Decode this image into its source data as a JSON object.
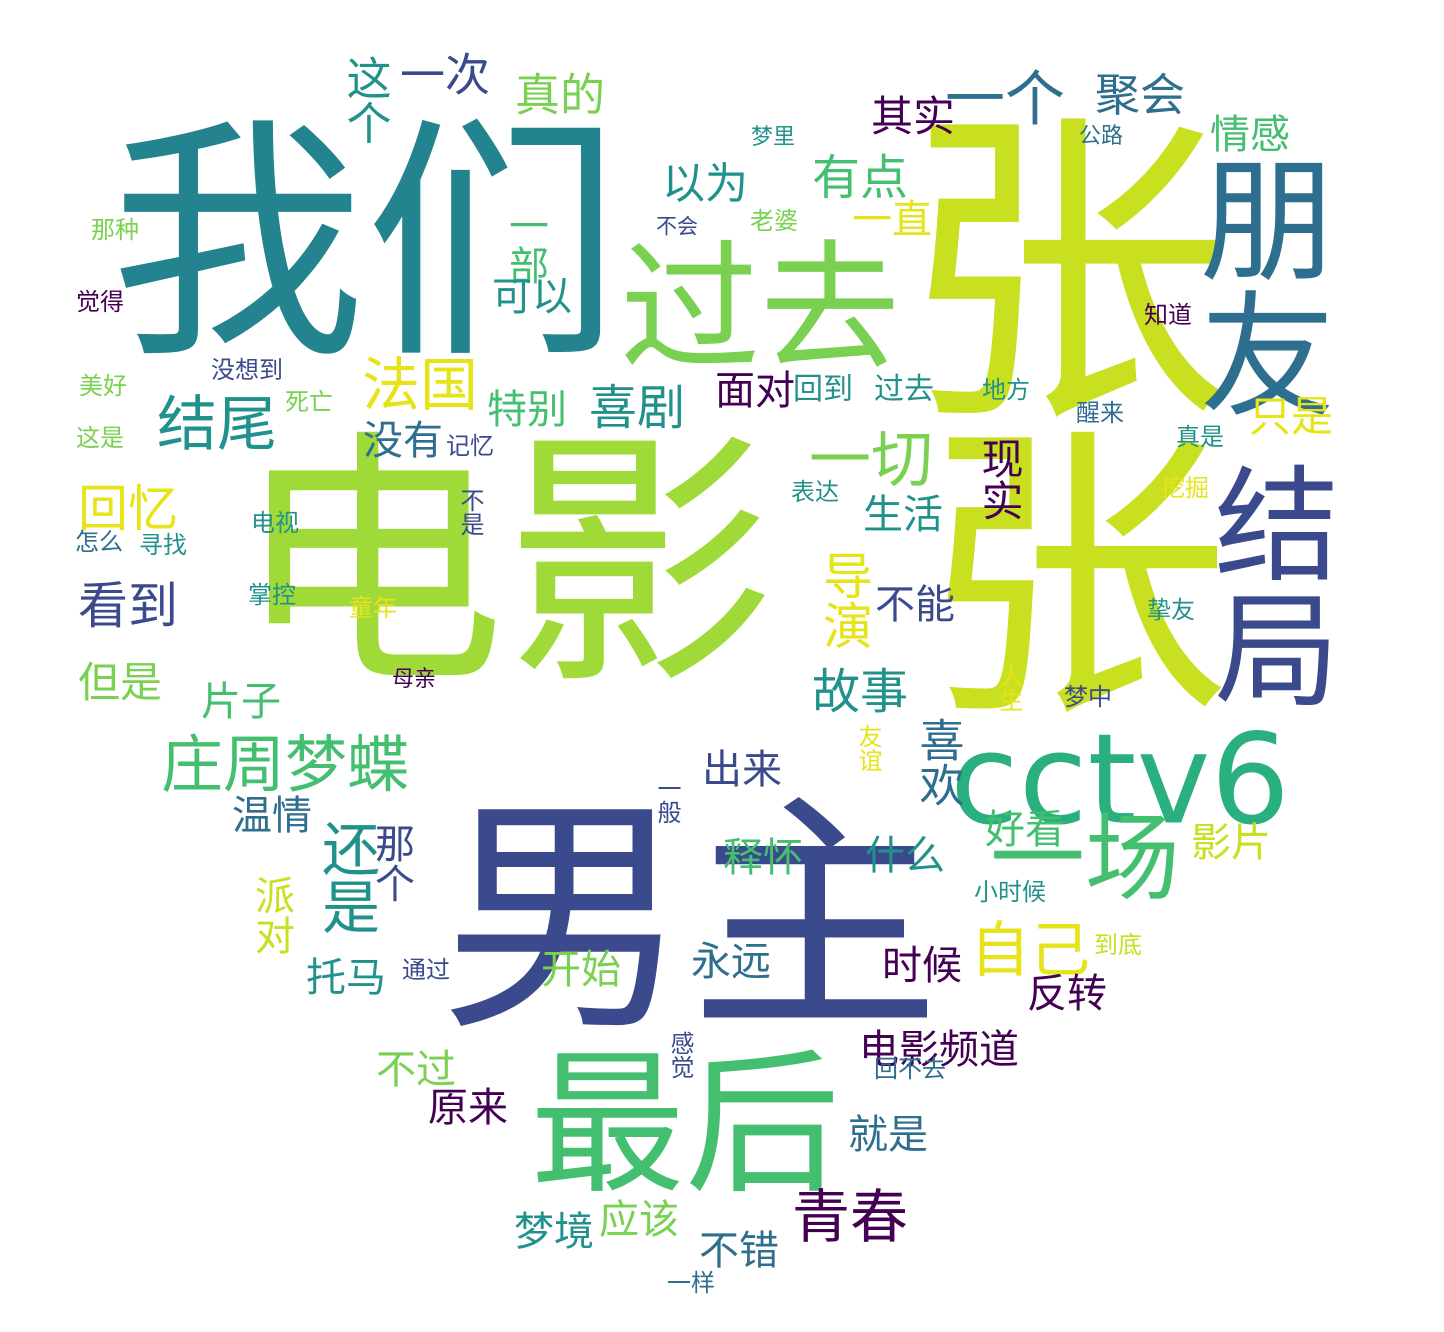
{
  "palette": {
    "dark_purple": "#440154",
    "indigo": "#3b4a8c",
    "blue": "#2e6e8e",
    "teal_blue": "#23838e",
    "teal": "#21918c",
    "sea_green": "#2ab07f",
    "green": "#44bf70",
    "light_green": "#7ad151",
    "lime": "#a0da39",
    "yellow_green": "#c8e020",
    "yellow": "#e6e419",
    "background": "#ffffff"
  },
  "words": [
    {
      "text": "我们",
      "color": "teal_blue"
    },
    {
      "text": "张",
      "color": "yellow_green"
    },
    {
      "text": "张",
      "color": "yellow_green"
    },
    {
      "text": "电影",
      "color": "lime"
    },
    {
      "text": "男主",
      "color": "indigo"
    },
    {
      "text": "过去",
      "color": "light_green"
    },
    {
      "text": "朋友",
      "color": "blue"
    },
    {
      "text": "结局",
      "color": "indigo"
    },
    {
      "text": "cctv6",
      "color": "sea_green"
    },
    {
      "text": "最后",
      "color": "green"
    },
    {
      "text": "一场",
      "color": "green"
    },
    {
      "text": "一个",
      "color": "blue"
    },
    {
      "text": "聚会",
      "color": "blue"
    },
    {
      "text": "这个",
      "color": "teal"
    },
    {
      "text": "一次",
      "color": "indigo"
    },
    {
      "text": "真的",
      "color": "light_green"
    },
    {
      "text": "其实",
      "color": "dark_purple"
    },
    {
      "text": "情感",
      "color": "green"
    },
    {
      "text": "梦里",
      "color": "teal"
    },
    {
      "text": "公路",
      "color": "blue"
    },
    {
      "text": "以为",
      "color": "teal"
    },
    {
      "text": "有点",
      "color": "green"
    },
    {
      "text": "一部",
      "color": "green"
    },
    {
      "text": "一直",
      "color": "yellow"
    },
    {
      "text": "那种",
      "color": "light_green"
    },
    {
      "text": "不会",
      "color": "indigo"
    },
    {
      "text": "老婆",
      "color": "light_green"
    },
    {
      "text": "觉得",
      "color": "dark_purple"
    },
    {
      "text": "可以",
      "color": "teal"
    },
    {
      "text": "知道",
      "color": "dark_purple"
    },
    {
      "text": "没想到",
      "color": "indigo"
    },
    {
      "text": "美好",
      "color": "light_green"
    },
    {
      "text": "法国",
      "color": "yellow"
    },
    {
      "text": "特别",
      "color": "green"
    },
    {
      "text": "喜剧",
      "color": "teal"
    },
    {
      "text": "面对",
      "color": "dark_purple"
    },
    {
      "text": "回到",
      "color": "teal"
    },
    {
      "text": "过去",
      "color": "teal"
    },
    {
      "text": "地方",
      "color": "teal"
    },
    {
      "text": "醒来",
      "color": "blue"
    },
    {
      "text": "结尾",
      "color": "teal"
    },
    {
      "text": "死亡",
      "color": "light_green"
    },
    {
      "text": "只是",
      "color": "yellow"
    },
    {
      "text": "这是",
      "color": "light_green"
    },
    {
      "text": "没有",
      "color": "blue"
    },
    {
      "text": "记忆",
      "color": "indigo"
    },
    {
      "text": "真是",
      "color": "teal"
    },
    {
      "text": "一切",
      "color": "light_green"
    },
    {
      "text": "现实",
      "color": "dark_purple"
    },
    {
      "text": "回忆",
      "color": "yellow"
    },
    {
      "text": "表达",
      "color": "teal"
    },
    {
      "text": "挖掘",
      "color": "yellow"
    },
    {
      "text": "生活",
      "color": "teal"
    },
    {
      "text": "电视",
      "color": "teal"
    },
    {
      "text": "不是",
      "color": "indigo"
    },
    {
      "text": "怎么",
      "color": "blue"
    },
    {
      "text": "寻找",
      "color": "teal"
    },
    {
      "text": "看到",
      "color": "indigo"
    },
    {
      "text": "导演",
      "color": "yellow"
    },
    {
      "text": "掌控",
      "color": "teal"
    },
    {
      "text": "童年",
      "color": "yellow"
    },
    {
      "text": "不能",
      "color": "indigo"
    },
    {
      "text": "挚友",
      "color": "teal"
    },
    {
      "text": "但是",
      "color": "light_green"
    },
    {
      "text": "母亲",
      "color": "dark_purple"
    },
    {
      "text": "人生",
      "color": "yellow"
    },
    {
      "text": "片子",
      "color": "green"
    },
    {
      "text": "故事",
      "color": "teal"
    },
    {
      "text": "梦中",
      "color": "indigo"
    },
    {
      "text": "庄周梦蝶",
      "color": "green"
    },
    {
      "text": "友谊",
      "color": "yellow"
    },
    {
      "text": "喜欢",
      "color": "blue"
    },
    {
      "text": "出来",
      "color": "indigo"
    },
    {
      "text": "一般",
      "color": "indigo"
    },
    {
      "text": "温情",
      "color": "blue"
    },
    {
      "text": "还是",
      "color": "teal"
    },
    {
      "text": "那个",
      "color": "indigo"
    },
    {
      "text": "好看",
      "color": "green"
    },
    {
      "text": "影片",
      "color": "yellow_green"
    },
    {
      "text": "释怀",
      "color": "green"
    },
    {
      "text": "什么",
      "color": "teal"
    },
    {
      "text": "小时候",
      "color": "teal"
    },
    {
      "text": "派对",
      "color": "yellow_green"
    },
    {
      "text": "自己",
      "color": "yellow"
    },
    {
      "text": "到底",
      "color": "yellow_green"
    },
    {
      "text": "永远",
      "color": "blue"
    },
    {
      "text": "时候",
      "color": "dark_purple"
    },
    {
      "text": "开始",
      "color": "light_green"
    },
    {
      "text": "通过",
      "color": "indigo"
    },
    {
      "text": "托马",
      "color": "teal"
    },
    {
      "text": "反转",
      "color": "dark_purple"
    },
    {
      "text": "电影频道",
      "color": "dark_purple"
    },
    {
      "text": "感觉",
      "color": "indigo"
    },
    {
      "text": "回不去",
      "color": "blue"
    },
    {
      "text": "不过",
      "color": "light_green"
    },
    {
      "text": "原来",
      "color": "dark_purple"
    },
    {
      "text": "就是",
      "color": "blue"
    },
    {
      "text": "青春",
      "color": "dark_purple"
    },
    {
      "text": "梦境",
      "color": "teal"
    },
    {
      "text": "应该",
      "color": "light_green"
    },
    {
      "text": "不错",
      "color": "blue"
    },
    {
      "text": "一样",
      "color": "blue"
    }
  ]
}
